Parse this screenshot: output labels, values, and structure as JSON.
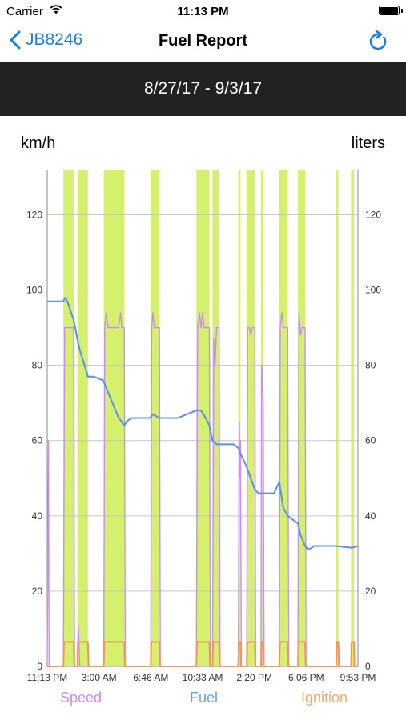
{
  "status_bar": {
    "carrier": "Carrier",
    "time": "11:13 PM"
  },
  "nav": {
    "back_label": "JB8246",
    "title": "Fuel Report"
  },
  "date_range": "8/27/17 - 9/3/17",
  "units": {
    "left": "km/h",
    "right": "liters"
  },
  "legend": {
    "speed": "Speed",
    "fuel": "Fuel",
    "ignition": "Ignition"
  },
  "colors": {
    "accent": "#1a7ee8",
    "speed": "#c88ef2",
    "fuel": "#5a8def",
    "ignition": "#f7945a",
    "ignition_band": "#d4f06c",
    "header": "#222222"
  },
  "chart_data": {
    "type": "line",
    "yaxis_left": {
      "label": "km/h",
      "ticks": [
        0,
        20,
        40,
        60,
        80,
        100,
        120
      ],
      "range": [
        0,
        132
      ]
    },
    "yaxis_right": {
      "label": "liters",
      "ticks": [
        0,
        20,
        40,
        60,
        80,
        100,
        120
      ],
      "range": [
        0,
        132
      ]
    },
    "x_ticks": [
      "11:13 PM",
      "3:00 AM",
      "6:46 AM",
      "10:33 AM",
      "2:20 PM",
      "6:06 PM",
      "9:53 PM"
    ],
    "x_range": [
      0,
      1
    ],
    "ignition_on_intervals": [
      [
        0.052,
        0.085
      ],
      [
        0.097,
        0.131
      ],
      [
        0.182,
        0.248
      ],
      [
        0.333,
        0.361
      ],
      [
        0.48,
        0.522
      ],
      [
        0.532,
        0.553
      ],
      [
        0.615,
        0.622
      ],
      [
        0.642,
        0.668
      ],
      [
        0.688,
        0.695
      ],
      [
        0.747,
        0.774
      ],
      [
        0.807,
        0.83
      ],
      [
        0.93,
        0.937
      ],
      [
        0.978,
        0.987
      ]
    ],
    "series": [
      {
        "name": "Fuel",
        "x": [
          0,
          0.052,
          0.058,
          0.065,
          0.085,
          0.09,
          0.097,
          0.105,
          0.12,
          0.131,
          0.15,
          0.18,
          0.19,
          0.2,
          0.21,
          0.22,
          0.23,
          0.24,
          0.248,
          0.255,
          0.27,
          0.33,
          0.34,
          0.36,
          0.42,
          0.48,
          0.495,
          0.51,
          0.522,
          0.532,
          0.545,
          0.553,
          0.6,
          0.615,
          0.625,
          0.642,
          0.655,
          0.668,
          0.68,
          0.688,
          0.7,
          0.73,
          0.747,
          0.76,
          0.774,
          0.79,
          0.807,
          0.815,
          0.83,
          0.84,
          0.86,
          0.93,
          0.98,
          1.0
        ],
        "values": [
          97,
          97,
          98,
          97,
          92,
          90,
          87,
          84,
          80,
          77,
          77,
          76,
          74,
          72,
          70,
          68,
          66,
          65,
          64,
          65,
          66,
          66,
          67,
          66,
          66,
          68,
          68,
          66,
          64,
          60,
          59,
          59,
          59,
          58,
          56,
          53,
          50,
          47,
          46,
          46,
          46,
          46,
          49,
          42,
          40,
          39,
          38,
          35,
          32,
          31,
          32,
          32,
          31.5,
          32
        ]
      },
      {
        "name": "Speed",
        "x": [
          0,
          0.004,
          0.006,
          0.052,
          0.056,
          0.058,
          0.07,
          0.072,
          0.085,
          0.088,
          0.097,
          0.1,
          0.105,
          0.131,
          0.135,
          0.182,
          0.185,
          0.19,
          0.196,
          0.2,
          0.205,
          0.23,
          0.236,
          0.24,
          0.245,
          0.248,
          0.251,
          0.333,
          0.336,
          0.34,
          0.345,
          0.35,
          0.355,
          0.361,
          0.364,
          0.48,
          0.484,
          0.49,
          0.495,
          0.5,
          0.505,
          0.51,
          0.515,
          0.522,
          0.525,
          0.532,
          0.536,
          0.54,
          0.545,
          0.553,
          0.556,
          0.615,
          0.618,
          0.62,
          0.622,
          0.625,
          0.642,
          0.645,
          0.65,
          0.655,
          0.66,
          0.668,
          0.671,
          0.688,
          0.69,
          0.695,
          0.698,
          0.747,
          0.75,
          0.755,
          0.76,
          0.765,
          0.774,
          0.777,
          0.807,
          0.81,
          0.815,
          0.82,
          0.83,
          0.833,
          1.0
        ],
        "values": [
          0,
          60,
          0,
          0,
          90,
          90,
          90,
          90,
          90,
          0,
          0,
          11,
          0,
          0,
          0,
          0,
          90,
          94,
          90,
          90,
          90,
          90,
          94,
          90,
          90,
          90,
          0,
          0,
          90,
          94,
          90,
          90,
          90,
          90,
          0,
          0,
          90,
          94,
          90,
          94,
          90,
          90,
          90,
          90,
          0,
          0,
          87,
          80,
          90,
          90,
          0,
          0,
          65,
          50,
          60,
          0,
          0,
          90,
          90,
          88,
          90,
          90,
          0,
          0,
          80,
          70,
          0,
          0,
          90,
          94,
          90,
          90,
          90,
          0,
          0,
          94,
          88,
          90,
          90,
          0,
          0
        ]
      },
      {
        "name": "Ignition",
        "x": [
          0,
          0.052,
          0.054,
          0.085,
          0.087,
          0.097,
          0.099,
          0.131,
          0.133,
          0.182,
          0.184,
          0.248,
          0.25,
          0.333,
          0.335,
          0.361,
          0.363,
          0.48,
          0.482,
          0.522,
          0.524,
          0.532,
          0.534,
          0.553,
          0.555,
          0.615,
          0.617,
          0.622,
          0.624,
          0.642,
          0.644,
          0.668,
          0.67,
          0.688,
          0.69,
          0.695,
          0.697,
          0.747,
          0.749,
          0.774,
          0.776,
          0.807,
          0.809,
          0.83,
          0.832,
          0.93,
          0.932,
          0.937,
          0.939,
          0.978,
          0.98,
          0.987,
          0.989,
          1.0
        ],
        "values": [
          0,
          0,
          6.5,
          6.5,
          0,
          0,
          6.5,
          6.5,
          0,
          0,
          6.5,
          6.5,
          0,
          0,
          6.5,
          6.5,
          0,
          0,
          6.5,
          6.5,
          0,
          0,
          6.5,
          6.5,
          0,
          0,
          6.5,
          6.5,
          0,
          0,
          6.5,
          6.5,
          0,
          0,
          6.5,
          6.5,
          0,
          0,
          6.5,
          6.5,
          0,
          0,
          6.5,
          6.5,
          0,
          0,
          6.5,
          6.5,
          0,
          0,
          6.5,
          6.5,
          0,
          0
        ]
      }
    ]
  }
}
